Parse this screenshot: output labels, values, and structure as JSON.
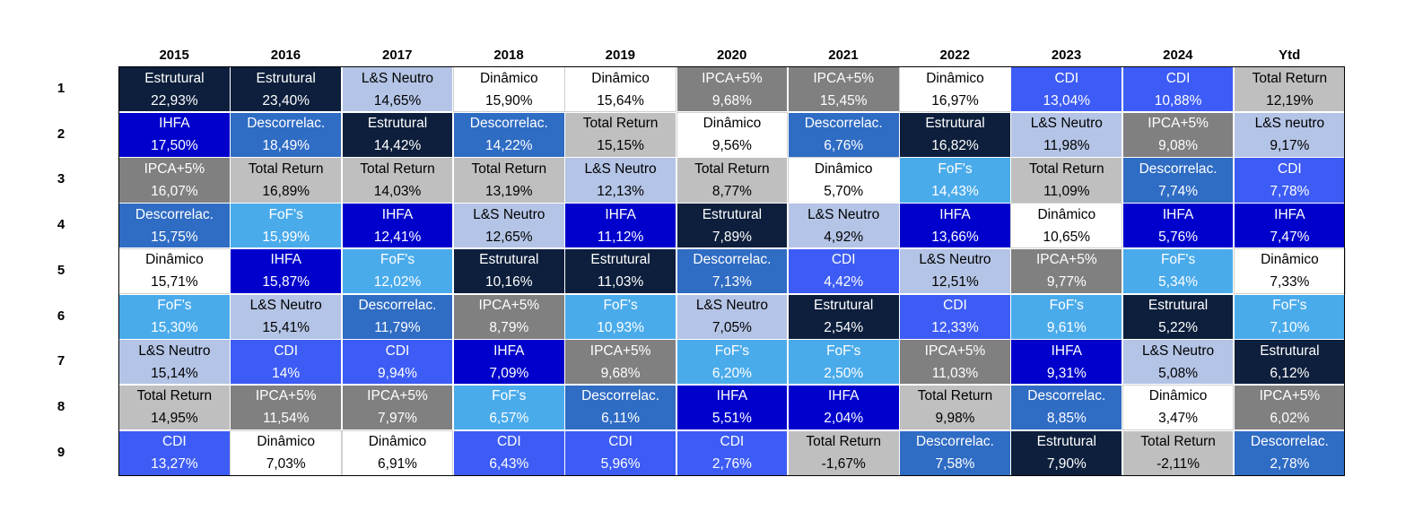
{
  "chart_data": {
    "type": "table",
    "title": "",
    "columns": [
      "2015",
      "2016",
      "2017",
      "2018",
      "2019",
      "2020",
      "2021",
      "2022",
      "2023",
      "2024",
      "Ytd"
    ],
    "rows": [
      "1",
      "2",
      "3",
      "4",
      "5",
      "6",
      "7",
      "8",
      "9"
    ],
    "category_colors": {
      "Estrutural": "#0d1f3c",
      "L&S Neutro": "#b4c4e6",
      "L&S neutro": "#b4c4e6",
      "Dinâmico": "#ffffff",
      "IPCA+5%": "#808080",
      "CDI": "#3d5cf5",
      "Total Return": "#bfbfbf",
      "IHFA": "#0000cc",
      "Descorrelac.": "#2f6cc4",
      "FoF's": "#4aabeb"
    },
    "dark_text_categories": [
      "L&S Neutro",
      "L&S neutro",
      "Dinâmico",
      "Total Return"
    ],
    "cells": [
      [
        {
          "name": "Estrutural",
          "value": "22,93%"
        },
        {
          "name": "Estrutural",
          "value": "23,40%"
        },
        {
          "name": "L&S Neutro",
          "value": "14,65%"
        },
        {
          "name": "Dinâmico",
          "value": "15,90%"
        },
        {
          "name": "Dinâmico",
          "value": "15,64%"
        },
        {
          "name": "IPCA+5%",
          "value": "9,68%"
        },
        {
          "name": "IPCA+5%",
          "value": "15,45%"
        },
        {
          "name": "Dinâmico",
          "value": "16,97%"
        },
        {
          "name": "CDI",
          "value": "13,04%"
        },
        {
          "name": "CDI",
          "value": "10,88%"
        },
        {
          "name": "Total Return",
          "value": "12,19%"
        }
      ],
      [
        {
          "name": "IHFA",
          "value": "17,50%"
        },
        {
          "name": "Descorrelac.",
          "value": "18,49%"
        },
        {
          "name": "Estrutural",
          "value": "14,42%"
        },
        {
          "name": "Descorrelac.",
          "value": "14,22%"
        },
        {
          "name": "Total Return",
          "value": "15,15%"
        },
        {
          "name": "Dinâmico",
          "value": "9,56%"
        },
        {
          "name": "Descorrelac.",
          "value": "6,76%"
        },
        {
          "name": "Estrutural",
          "value": "16,82%"
        },
        {
          "name": "L&S Neutro",
          "value": "11,98%"
        },
        {
          "name": "IPCA+5%",
          "value": "9,08%"
        },
        {
          "name": "L&S neutro",
          "value": "9,17%"
        }
      ],
      [
        {
          "name": "IPCA+5%",
          "value": "16,07%"
        },
        {
          "name": "Total Return",
          "value": "16,89%"
        },
        {
          "name": "Total Return",
          "value": "14,03%"
        },
        {
          "name": "Total Return",
          "value": "13,19%"
        },
        {
          "name": "L&S Neutro",
          "value": "12,13%"
        },
        {
          "name": "Total Return",
          "value": "8,77%"
        },
        {
          "name": "Dinâmico",
          "value": "5,70%"
        },
        {
          "name": "FoF's",
          "value": "14,43%"
        },
        {
          "name": "Total Return",
          "value": "11,09%"
        },
        {
          "name": "Descorrelac.",
          "value": "7,74%"
        },
        {
          "name": "CDI",
          "value": "7,78%"
        }
      ],
      [
        {
          "name": "Descorrelac.",
          "value": "15,75%"
        },
        {
          "name": "FoF's",
          "value": "15,99%"
        },
        {
          "name": "IHFA",
          "value": "12,41%"
        },
        {
          "name": "L&S Neutro",
          "value": "12,65%"
        },
        {
          "name": "IHFA",
          "value": "11,12%"
        },
        {
          "name": "Estrutural",
          "value": "7,89%"
        },
        {
          "name": "L&S Neutro",
          "value": "4,92%"
        },
        {
          "name": "IHFA",
          "value": "13,66%"
        },
        {
          "name": "Dinâmico",
          "value": "10,65%"
        },
        {
          "name": "IHFA",
          "value": "5,76%"
        },
        {
          "name": "IHFA",
          "value": "7,47%"
        }
      ],
      [
        {
          "name": "Dinâmico",
          "value": "15,71%"
        },
        {
          "name": "IHFA",
          "value": "15,87%"
        },
        {
          "name": "FoF's",
          "value": "12,02%"
        },
        {
          "name": "Estrutural",
          "value": "10,16%"
        },
        {
          "name": "Estrutural",
          "value": "11,03%"
        },
        {
          "name": "Descorrelac.",
          "value": "7,13%"
        },
        {
          "name": "CDI",
          "value": "4,42%"
        },
        {
          "name": "L&S Neutro",
          "value": "12,51%"
        },
        {
          "name": "IPCA+5%",
          "value": "9,77%"
        },
        {
          "name": "FoF's",
          "value": "5,34%"
        },
        {
          "name": "Dinâmico",
          "value": "7,33%"
        }
      ],
      [
        {
          "name": "FoF's",
          "value": "15,30%"
        },
        {
          "name": "L&S Neutro",
          "value": "15,41%"
        },
        {
          "name": "Descorrelac.",
          "value": "11,79%"
        },
        {
          "name": "IPCA+5%",
          "value": "8,79%"
        },
        {
          "name": "FoF's",
          "value": "10,93%"
        },
        {
          "name": "L&S Neutro",
          "value": "7,05%"
        },
        {
          "name": "Estrutural",
          "value": "2,54%"
        },
        {
          "name": "CDI",
          "value": "12,33%"
        },
        {
          "name": "FoF's",
          "value": "9,61%"
        },
        {
          "name": "Estrutural",
          "value": "5,22%"
        },
        {
          "name": "FoF's",
          "value": "7,10%"
        }
      ],
      [
        {
          "name": "L&S Neutro",
          "value": "15,14%"
        },
        {
          "name": "CDI",
          "value": "14%"
        },
        {
          "name": "CDI",
          "value": "9,94%"
        },
        {
          "name": "IHFA",
          "value": "7,09%"
        },
        {
          "name": "IPCA+5%",
          "value": "9,68%"
        },
        {
          "name": "FoF's",
          "value": "6,20%"
        },
        {
          "name": "FoF's",
          "value": "2,50%"
        },
        {
          "name": "IPCA+5%",
          "value": "11,03%"
        },
        {
          "name": "IHFA",
          "value": "9,31%"
        },
        {
          "name": "L&S Neutro",
          "value": "5,08%"
        },
        {
          "name": "Estrutural",
          "value": "6,12%"
        }
      ],
      [
        {
          "name": "Total Return",
          "value": "14,95%"
        },
        {
          "name": "IPCA+5%",
          "value": "11,54%"
        },
        {
          "name": "IPCA+5%",
          "value": "7,97%"
        },
        {
          "name": "FoF's",
          "value": "6,57%"
        },
        {
          "name": "Descorrelac.",
          "value": "6,11%"
        },
        {
          "name": "IHFA",
          "value": "5,51%"
        },
        {
          "name": "IHFA",
          "value": "2,04%"
        },
        {
          "name": "Total Return",
          "value": "9,98%"
        },
        {
          "name": "Descorrelac.",
          "value": "8,85%"
        },
        {
          "name": "Dinâmico",
          "value": "3,47%"
        },
        {
          "name": "IPCA+5%",
          "value": "6,02%"
        }
      ],
      [
        {
          "name": "CDI",
          "value": "13,27%"
        },
        {
          "name": "Dinâmico",
          "value": "7,03%"
        },
        {
          "name": "Dinâmico",
          "value": "6,91%"
        },
        {
          "name": "CDI",
          "value": "6,43%"
        },
        {
          "name": "CDI",
          "value": "5,96%"
        },
        {
          "name": "CDI",
          "value": "2,76%"
        },
        {
          "name": "Total Return",
          "value": "-1,67%"
        },
        {
          "name": "Descorrelac.",
          "value": "7,58%"
        },
        {
          "name": "Estrutural",
          "value": "7,90%"
        },
        {
          "name": "Total Return",
          "value": "-2,11%"
        },
        {
          "name": "Descorrelac.",
          "value": "2,78%"
        }
      ]
    ]
  }
}
